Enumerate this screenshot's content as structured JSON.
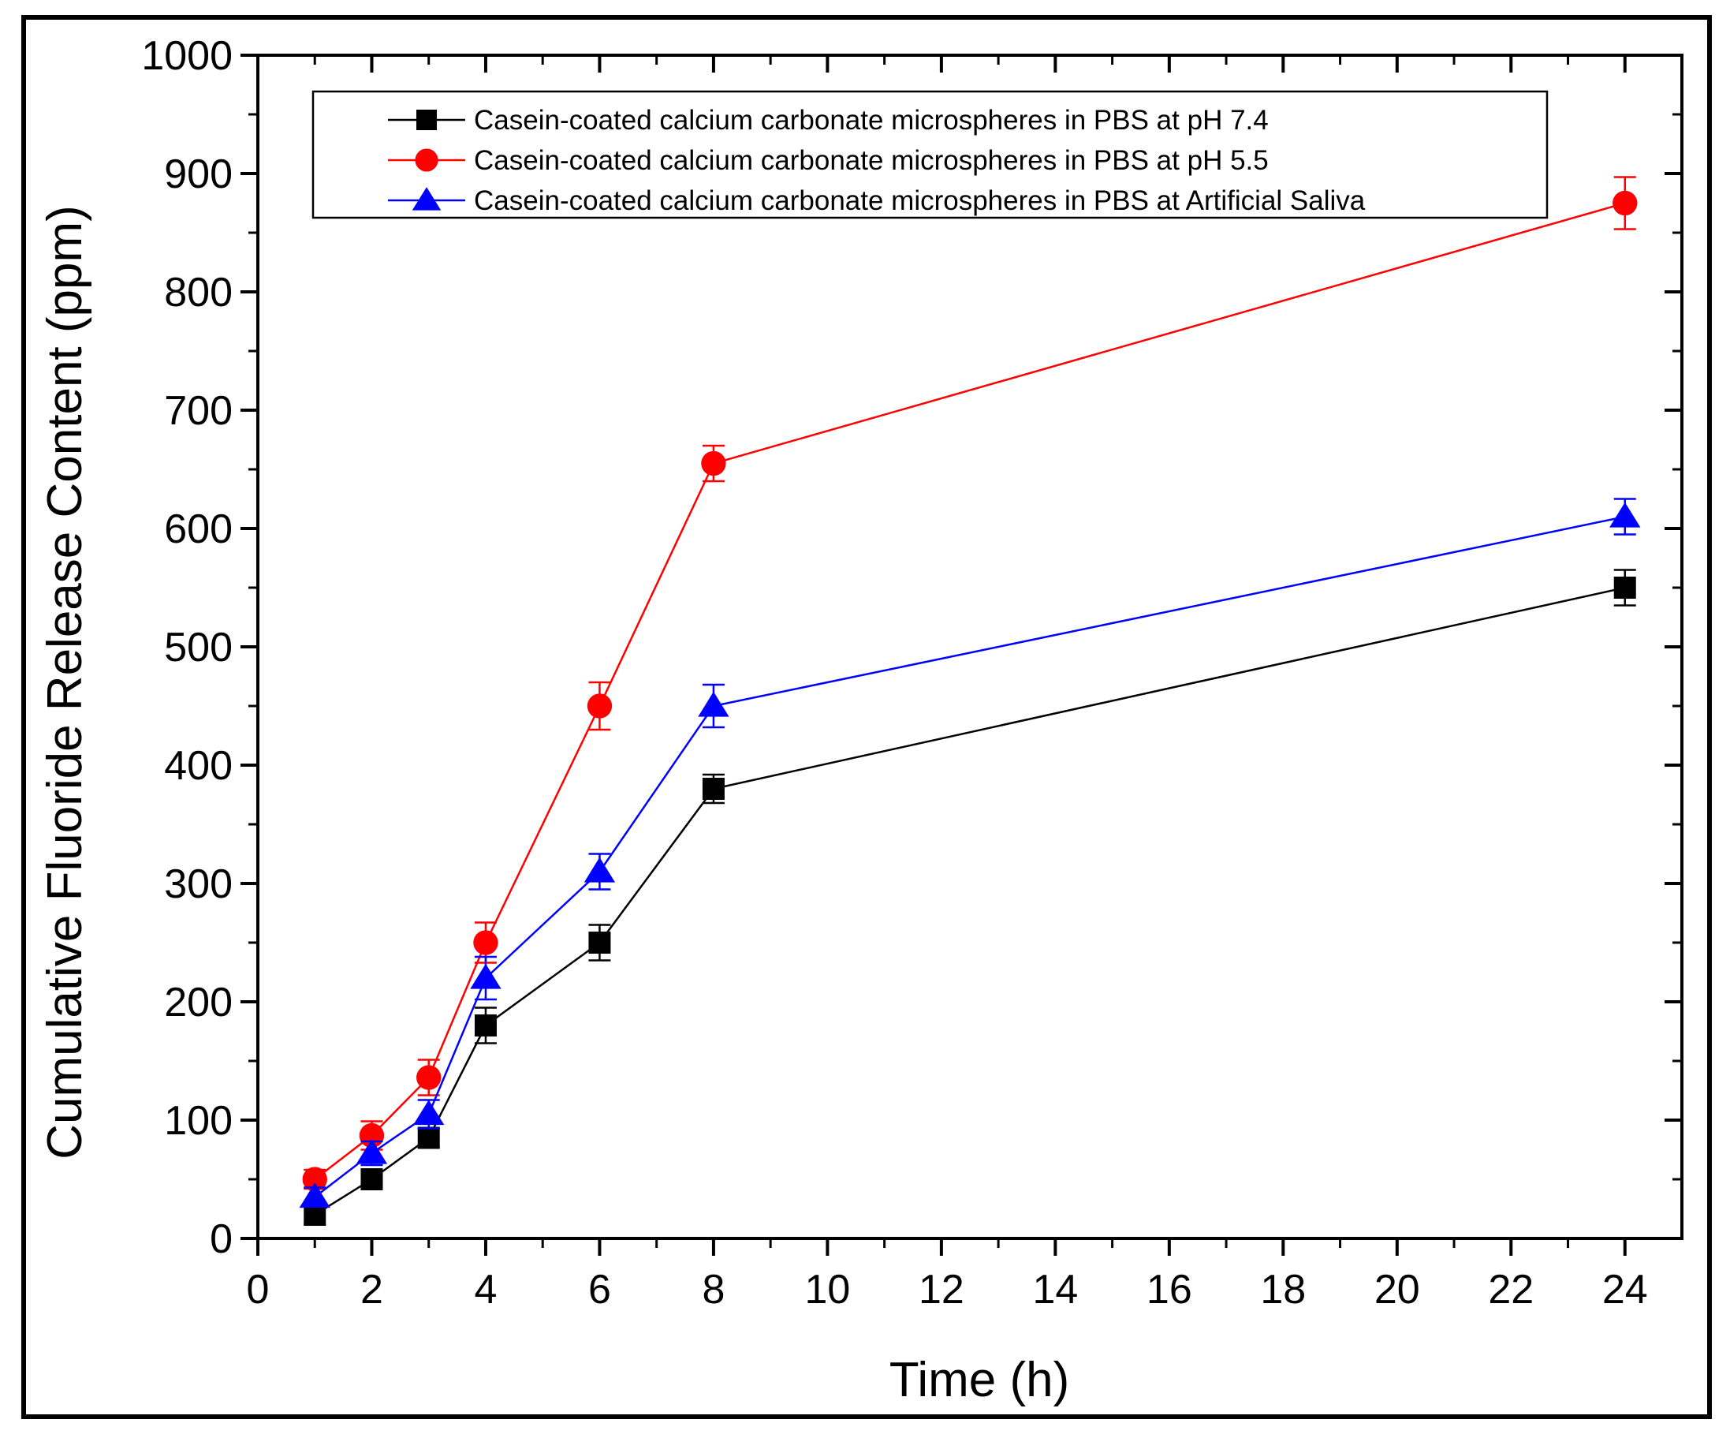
{
  "chart_data": {
    "type": "line",
    "title": "",
    "xlabel": "Time (h)",
    "ylabel": "Cumulative Fluoride Release Content (ppm)",
    "xlim": [
      0,
      25
    ],
    "ylim": [
      0,
      1000
    ],
    "x_ticks": [
      0,
      2,
      4,
      6,
      8,
      10,
      12,
      14,
      16,
      18,
      20,
      22,
      24
    ],
    "y_ticks": [
      0,
      100,
      200,
      300,
      400,
      500,
      600,
      700,
      800,
      900,
      1000
    ],
    "x_tick_labels": [
      "0",
      "2",
      "4",
      "6",
      "8",
      "10",
      "12",
      "14",
      "16",
      "18",
      "20",
      "22",
      "24"
    ],
    "y_tick_labels": [
      "0",
      "100",
      "200",
      "300",
      "400",
      "500",
      "600",
      "700",
      "800",
      "900",
      "1000"
    ],
    "grid": false,
    "legend_position": "top-left",
    "x": [
      1,
      2,
      3,
      4,
      6,
      8,
      24
    ],
    "series": [
      {
        "name": "Casein-coated calcium carbonate microspheres in PBS at pH 7.4",
        "color": "#000000",
        "marker": "square",
        "values": [
          20,
          50,
          85,
          180,
          250,
          380,
          550
        ],
        "errors": [
          8,
          8,
          8,
          15,
          15,
          12,
          15
        ]
      },
      {
        "name": "Casein-coated calcium carbonate microspheres in PBS at pH 5.5",
        "color": "#ff0000",
        "marker": "circle",
        "values": [
          50,
          87,
          136,
          250,
          450,
          655,
          875
        ],
        "errors": [
          8,
          12,
          15,
          17,
          20,
          15,
          22
        ]
      },
      {
        "name": "Casein-coated calcium carbonate microspheres in PBS at Artificial Saliva",
        "color": "#0000ff",
        "marker": "triangle",
        "values": [
          35,
          72,
          105,
          220,
          310,
          450,
          610
        ],
        "errors": [
          8,
          10,
          12,
          18,
          15,
          18,
          15
        ]
      }
    ]
  }
}
